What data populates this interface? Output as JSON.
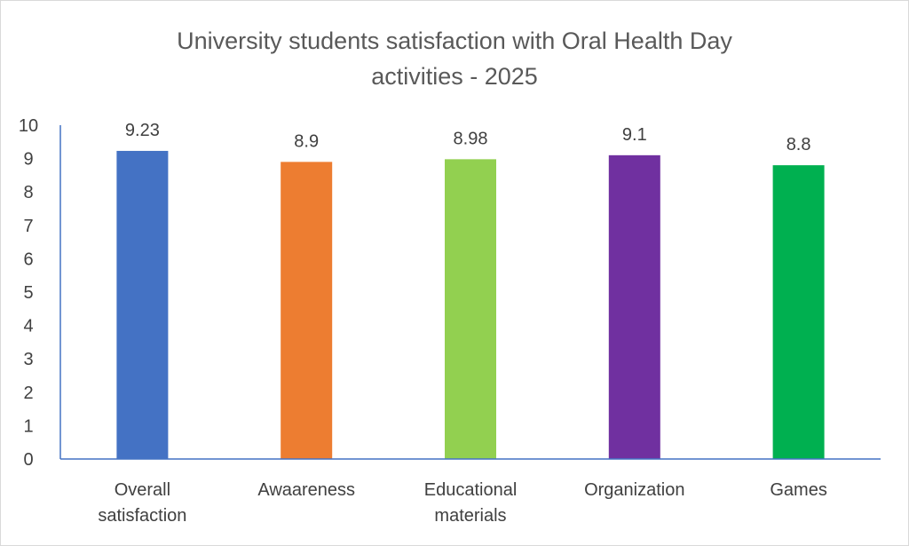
{
  "chart_data": {
    "type": "bar",
    "title_lines": [
      "University students satisfaction with Oral Health Day",
      "activities - 2025"
    ],
    "categories": [
      [
        "Overall",
        "satisfaction"
      ],
      [
        "Awaareness"
      ],
      [
        "Educational",
        "materials"
      ],
      [
        "Organization"
      ],
      [
        "Games"
      ]
    ],
    "values": [
      9.23,
      8.9,
      8.98,
      9.1,
      8.8
    ],
    "data_labels": [
      "9.23",
      "8.9",
      "8.98",
      "9.1",
      "8.8"
    ],
    "colors": [
      "#4472c4",
      "#ed7d31",
      "#92d050",
      "#7030a0",
      "#00b050"
    ],
    "ylim": [
      0,
      10
    ],
    "yticks": [
      "0",
      "1",
      "2",
      "3",
      "4",
      "5",
      "6",
      "7",
      "8",
      "9",
      "10"
    ],
    "grid": false,
    "legend": "none",
    "axis_color": "#4472c4",
    "text_color": "#404040"
  }
}
